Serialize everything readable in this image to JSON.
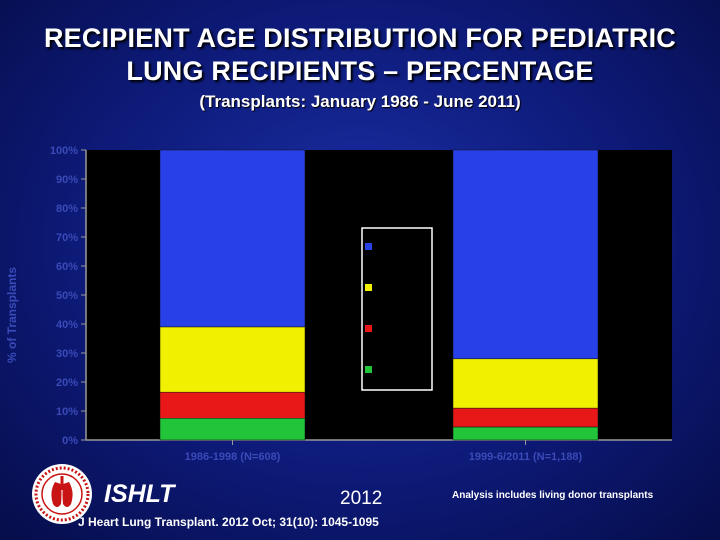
{
  "header": {
    "title_line1": "RECIPIENT AGE DISTRIBUTION FOR PEDIATRIC",
    "title_line2": "LUNG RECIPIENTS – PERCENTAGE",
    "subtitle": "(Transplants: January 1986 - June 2011)"
  },
  "chart_data": {
    "type": "bar",
    "stacked": true,
    "ylabel": "% of Transplants",
    "ylim": [
      0,
      100
    ],
    "yticks": [
      "0%",
      "10%",
      "20%",
      "30%",
      "40%",
      "50%",
      "60%",
      "70%",
      "80%",
      "90%",
      "100%"
    ],
    "categories": [
      "1986-1998 (N=608)",
      "1999-6/2011 (N=1,188)"
    ],
    "grid": false,
    "legend": {
      "placement": "center"
    },
    "series": [
      {
        "color": "#22c43a",
        "values": [
          7.5,
          4.5
        ]
      },
      {
        "color": "#e81818",
        "values": [
          9,
          6.5
        ]
      },
      {
        "color": "#f0f000",
        "values": [
          22.5,
          17
        ]
      },
      {
        "color": "#2840e8",
        "values": [
          61,
          72
        ]
      }
    ]
  },
  "footer": {
    "logo_text": "ISHLT",
    "year": "2012",
    "citation": "J Heart Lung Transplant. 2012 Oct; 31(10): 1045-1095",
    "note": "Analysis includes living donor transplants"
  }
}
